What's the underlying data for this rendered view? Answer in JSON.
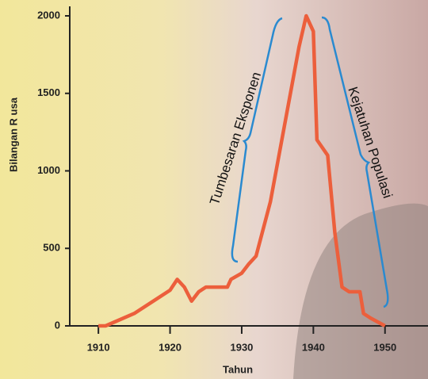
{
  "chart_data": {
    "type": "line",
    "x_label": "Tahun",
    "y_label": "Bilangan R usa",
    "annotations": [
      "Tumbesaran Eksponen",
      "Kejatuhan Populasi"
    ],
    "x": [
      1910,
      1911,
      1915,
      1920,
      1921,
      1922,
      1923,
      1924,
      1925,
      1928,
      1928.5,
      1930,
      1931,
      1932,
      1934,
      1936,
      1938,
      1939,
      1940,
      1940.5,
      1942,
      1943,
      1944,
      1945,
      1946.5,
      1947,
      1948,
      1950
    ],
    "series": [
      {
        "name": "Rusa",
        "color": "#ec5f3c",
        "values": [
          0,
          0,
          80,
          230,
          300,
          250,
          160,
          220,
          250,
          250,
          300,
          340,
          400,
          450,
          800,
          1300,
          1800,
          2000,
          1900,
          1200,
          1100,
          600,
          250,
          220,
          220,
          80,
          50,
          0
        ]
      }
    ],
    "xlim": [
      1906,
      1956
    ],
    "ylim": [
      0,
      2000
    ],
    "xticks": [
      1910,
      1920,
      1930,
      1940,
      1950
    ],
    "yticks": [
      0,
      500,
      1000,
      1500,
      2000
    ]
  }
}
